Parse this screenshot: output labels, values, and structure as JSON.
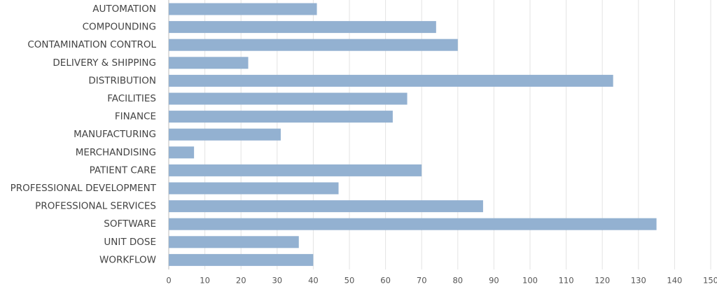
{
  "chart_data": {
    "type": "barh",
    "categories": [
      "AUTOMATION",
      "COMPOUNDING",
      "CONTAMINATION CONTROL",
      "DELIVERY & SHIPPING",
      "DISTRIBUTION",
      "FACILITIES",
      "FINANCE",
      "MANUFACTURING",
      "MERCHANDISING",
      "PATIENT CARE",
      "PROFESSIONAL DEVELOPMENT",
      "PROFESSIONAL SERVICES",
      "SOFTWARE",
      "UNIT DOSE",
      "WORKFLOW"
    ],
    "values": [
      41,
      74,
      80,
      22,
      123,
      66,
      62,
      31,
      7,
      70,
      47,
      87,
      135,
      36,
      40
    ],
    "color": "#93b1d1",
    "xlim": [
      0,
      150
    ],
    "xticks": [
      0,
      10,
      20,
      30,
      40,
      50,
      60,
      70,
      80,
      90,
      100,
      110,
      120,
      130,
      140,
      150
    ],
    "grid": true
  }
}
